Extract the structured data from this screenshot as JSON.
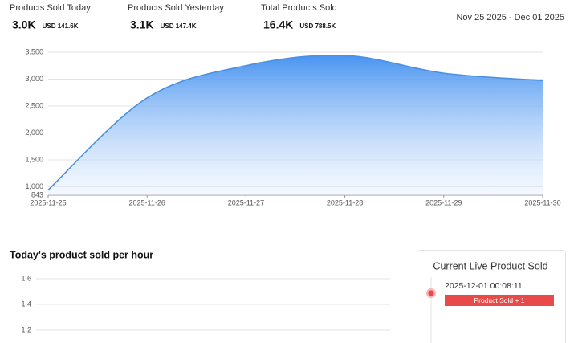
{
  "stats": [
    {
      "label": "Products Sold Today",
      "value": "3.0K",
      "usd": "USD 141.6K"
    },
    {
      "label": "Products Sold Yesterday",
      "value": "3.1K",
      "usd": "USD 147.4K"
    },
    {
      "label": "Total Products Sold",
      "value": "16.4K",
      "usd": "USD 788.5K"
    }
  ],
  "date_range": "Nov 25 2025 - Dec 01 2025",
  "chart_data": [
    {
      "type": "area",
      "x": [
        "2025-11-25",
        "2025-11-26",
        "2025-11-27",
        "2025-11-28",
        "2025-11-29",
        "2025-11-30"
      ],
      "series": [
        {
          "color": "#4a90e2",
          "values": [
            940,
            2650,
            3250,
            3440,
            3110,
            2975
          ]
        }
      ],
      "ylim": [
        843,
        3500
      ],
      "yticks": [
        843,
        {
          "value": 1000,
          "label": "1,000"
        },
        {
          "value": 1500,
          "label": "1,500"
        },
        {
          "value": 2000,
          "label": "2,000"
        },
        {
          "value": 2500,
          "label": "2,500"
        },
        {
          "value": 3000,
          "label": "3,000"
        },
        {
          "value": 3500,
          "label": "3,500"
        }
      ],
      "grid": true
    },
    {
      "type": "line",
      "title": "Today's product sold per hour",
      "ylim": [
        1.2,
        1.6
      ],
      "yticks": [
        1.2,
        1.4,
        1.6
      ],
      "grid": true
    }
  ],
  "live_panel": {
    "title": "Current Live Product Sold",
    "entries": [
      {
        "time": "2025-12-01 00:08:11",
        "badge": "Product Sold + 1"
      }
    ]
  }
}
